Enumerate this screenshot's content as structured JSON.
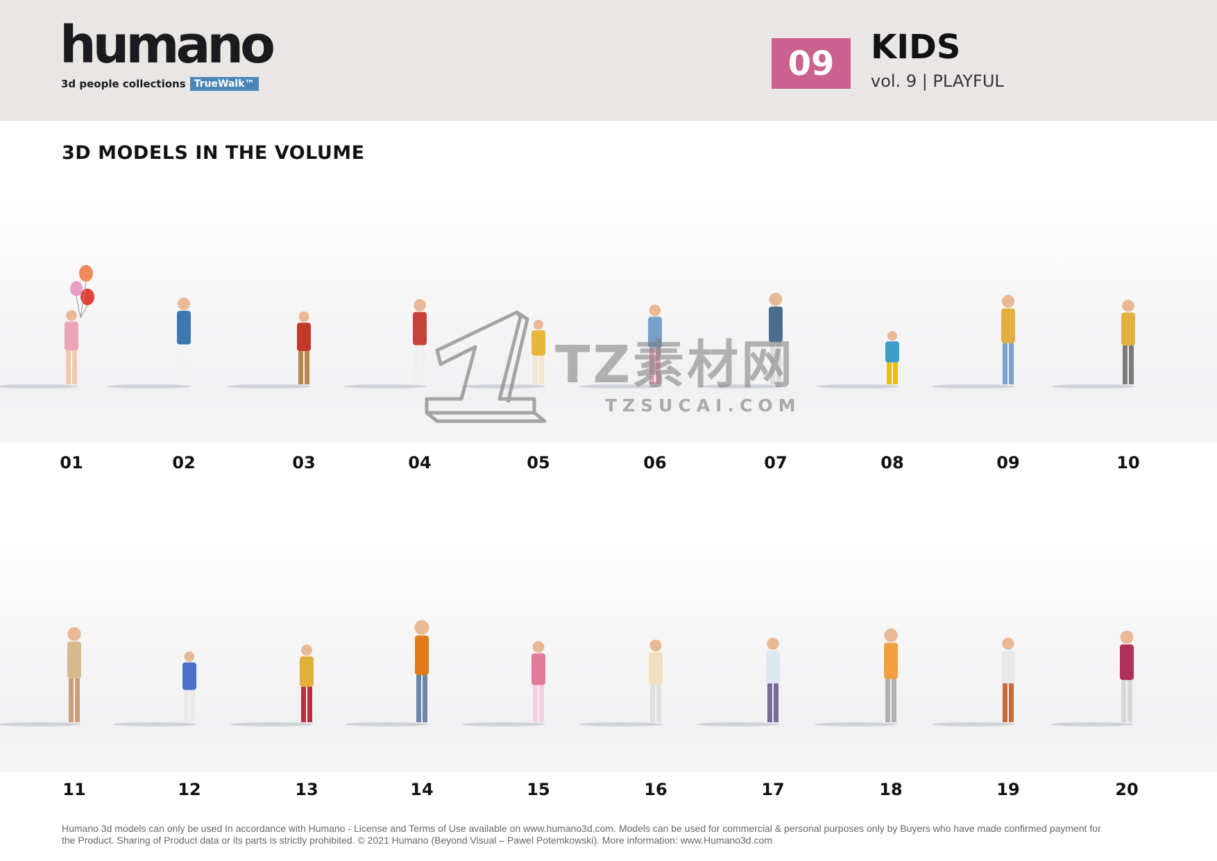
{
  "brand": {
    "logo_text": "humano",
    "tagline": "3d people collections",
    "badge": "TrueWalk™"
  },
  "volume": {
    "number": "09",
    "title": "KIDS",
    "subtitle": "vol. 9 | PLAYFUL",
    "accent_color": "#c9628f"
  },
  "section_title": "3D MODELS IN THE VOLUME",
  "models_row1": [
    "01",
    "02",
    "03",
    "04",
    "05",
    "06",
    "07",
    "08",
    "09",
    "10"
  ],
  "models_row2": [
    "11",
    "12",
    "13",
    "14",
    "15",
    "16",
    "17",
    "18",
    "19",
    "20"
  ],
  "watermark": {
    "chinese": "TZ素材网",
    "latin": "TZSUCAI.COM"
  },
  "footer": {
    "line1": "Humano 3d models can only be used In accordance with Humano - License and Terms of Use available on www.humano3d.com. Models can be used for commercial & personal purposes only by Buyers who have made confirmed payment for",
    "line2": "the Product. Sharing of Product data or its parts is strictly prohibited. © 2021 Humano (Beyond Visual – Pawel Potemkowski). More information: www.Humano3d.com"
  }
}
